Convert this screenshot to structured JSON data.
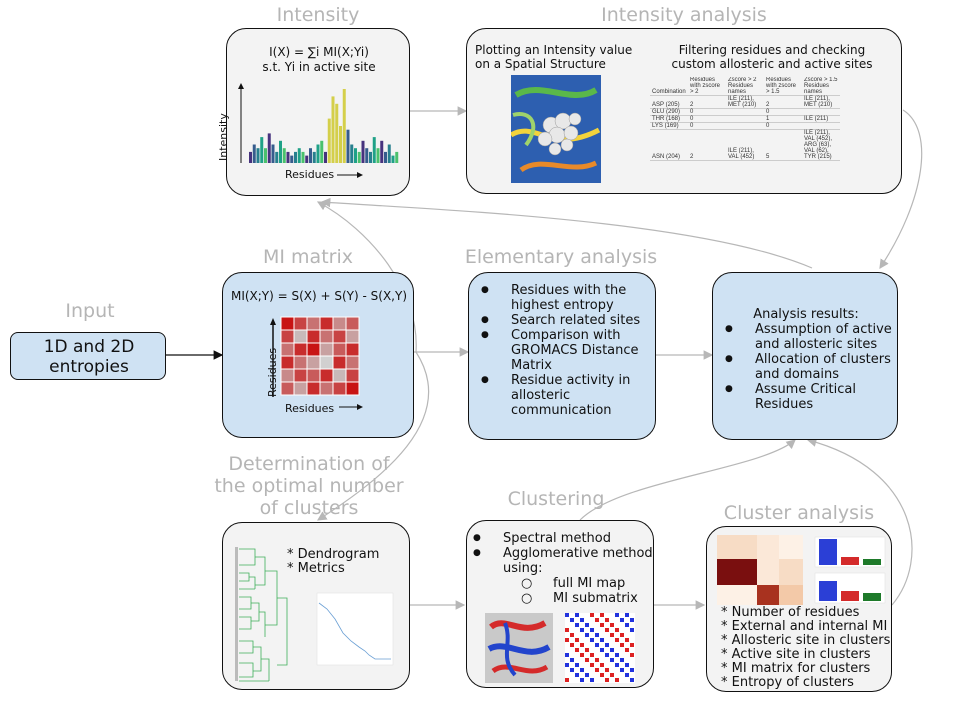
{
  "titles": {
    "intensity": "Intensity",
    "intensity_analysis": "Intensity analysis",
    "mi_matrix": "MI matrix",
    "elementary_analysis": "Elementary analysis",
    "input": "Input",
    "determination": [
      "Determination of",
      "the optimal number",
      "of clusters"
    ],
    "clustering": "Clustering",
    "cluster_analysis": "Cluster analysis"
  },
  "intensity_box": {
    "formula_line1": "I(X) = ∑i MI(X;Yi)",
    "formula_line2": "s.t. Yi in active site",
    "y_label": "Intensity",
    "x_label": "Residues",
    "chart_data": {
      "type": "bar",
      "values": [
        3,
        5,
        4,
        7,
        4,
        8,
        5,
        3,
        6,
        4,
        3,
        2,
        3,
        4,
        3,
        2,
        4,
        3,
        5,
        6,
        3,
        12,
        18,
        16,
        10,
        20,
        9,
        5,
        4,
        3,
        6,
        4,
        3,
        7,
        4,
        6,
        3,
        5,
        2,
        3
      ]
    }
  },
  "intensity_analysis_box": {
    "left_text_line1": "Plotting an Intensity value",
    "left_text_line2": "on a Spatial Structure",
    "right_text_line1": "Filtering residues and checking",
    "right_text_line2": "custom allosteric and active sites",
    "table": {
      "headers": [
        "Combination",
        "Residues with zscore > 2",
        "Zscore > 2 Residues names",
        "Residues with zscore > 1.5",
        "Zscore > 1.5 Residues names"
      ],
      "rows": [
        [
          "ASP (205)",
          "2",
          "ILE (211), MET (210)",
          "2",
          "ILE (211), MET (210)"
        ],
        [
          "GLU (290)",
          "0",
          "",
          "0",
          ""
        ],
        [
          "THR (168)",
          "0",
          "",
          "1",
          "ILE (211)"
        ],
        [
          "LYS (169)",
          "0",
          "",
          "0",
          ""
        ],
        [
          "ASN (204)",
          "2",
          "ILE (211), VAL (452)",
          "5",
          "ILE (211), VAL (452), ARG (63), VAL (62), TYR (215)"
        ]
      ]
    }
  },
  "mi_box": {
    "formula": "MI(X;Y) = S(X) + S(Y) - S(X,Y)",
    "y_label": "Residues",
    "x_label": "Residues",
    "chart_data": {
      "type": "heatmap",
      "values": [
        [
          1.0,
          0.8,
          0.6,
          0.9,
          0.5,
          0.7
        ],
        [
          0.8,
          0.3,
          0.9,
          0.6,
          0.8,
          0.4
        ],
        [
          0.6,
          0.9,
          1.0,
          0.4,
          0.7,
          0.9
        ],
        [
          0.9,
          0.6,
          0.4,
          0.2,
          0.9,
          0.6
        ],
        [
          0.5,
          0.8,
          0.7,
          0.9,
          0.3,
          0.8
        ],
        [
          0.7,
          0.4,
          0.9,
          0.6,
          0.8,
          1.0
        ]
      ]
    }
  },
  "elementary_box": {
    "items": [
      [
        "Residues with the",
        "highest entropy"
      ],
      [
        "Search related sites"
      ],
      [
        "Comparison with",
        "GROMACS Distance",
        "Matrix"
      ],
      [
        "Residue activity in",
        "allosteric",
        "communication"
      ]
    ]
  },
  "input_box": {
    "line1": "1D and 2D",
    "line2": "entropies"
  },
  "results_box": {
    "heading": "Analysis results:",
    "items": [
      [
        "Assumption of active",
        "and allosteric sites"
      ],
      [
        "Allocation of clusters",
        "and domains"
      ],
      [
        "Assume Critical",
        "Residues"
      ]
    ]
  },
  "determination_box": {
    "items": [
      "* Dendrogram",
      "* Metrics"
    ]
  },
  "clustering_box": {
    "items": [
      "Spectral method",
      "Agglomerative method",
      "using:"
    ],
    "sub_items": [
      "full MI map",
      "MI submatrix"
    ]
  },
  "cluster_analysis_box": {
    "items": [
      "* Number of residues",
      "* External and internal MI",
      "* Allosteric site in clusters",
      "* Active site in clusters",
      "* MI matrix for clusters",
      "* Entropy of clusters"
    ]
  },
  "colors": {
    "gray_box": "#f3f3f3",
    "blue_box": "#cfe2f3",
    "title_gray": "#b5b5b5",
    "arrow_gray": "#b7b7b7"
  }
}
